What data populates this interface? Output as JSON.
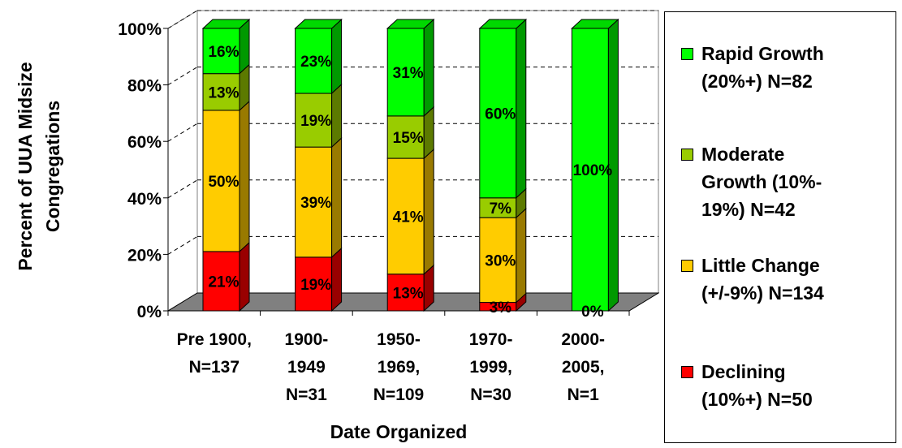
{
  "chart_data": {
    "type": "bar",
    "stacked": true,
    "percent": true,
    "categories": [
      "Pre 1900,\nN=137",
      "1900-\n1949\nN=31",
      "1950-\n1969,\nN=109",
      "1970-\n1999,\nN=30",
      "2000-\n2005,\nN=1"
    ],
    "series": [
      {
        "name": "Declining (10%+) N=50",
        "legend_label": "Declining\n(10%+) N=50",
        "color": "#ff0000",
        "values": [
          21,
          19,
          13,
          3,
          0
        ],
        "labels": [
          "21%",
          "19%",
          "13%",
          "3%",
          "0%"
        ]
      },
      {
        "name": "Little Change (+/-9%) N=134",
        "legend_label": "Little Change\n(+/-9%) N=134",
        "color": "#ffcc00",
        "values": [
          50,
          39,
          41,
          30,
          0
        ],
        "labels": [
          "50%",
          "39%",
          "41%",
          "30%",
          ""
        ]
      },
      {
        "name": "Moderate Growth (10%-19%) N=42",
        "legend_label": "Moderate\nGrowth (10%-\n19%) N=42",
        "color": "#99cc00",
        "values": [
          13,
          19,
          15,
          7,
          0
        ],
        "labels": [
          "13%",
          "19%",
          "15%",
          "7%",
          ""
        ]
      },
      {
        "name": "Rapid Growth (20%+) N=82",
        "legend_label": "Rapid Growth\n(20%+) N=82",
        "color": "#00ff00",
        "values": [
          16,
          23,
          31,
          60,
          100
        ],
        "labels": [
          "16%",
          "23%",
          "31%",
          "60%",
          "100%"
        ]
      }
    ],
    "yticks": [
      "0%",
      "20%",
      "40%",
      "60%",
      "80%",
      "100%"
    ],
    "ylim": [
      0,
      100
    ],
    "xlabel": "Date Organized",
    "ylabel": "Percent of UUA Midsize Congregations",
    "ylabel_lines": [
      "Percent of UUA Midsize",
      "Congregations"
    ],
    "title": "",
    "grid": true,
    "legend_position": "right"
  }
}
